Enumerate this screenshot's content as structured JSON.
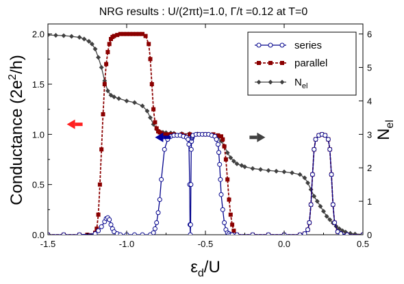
{
  "chart_data": {
    "type": "line",
    "title": "NRG results : U/(2πt)=1.0, Γ/t =0.12  at T=0",
    "xlabel_main": "ε",
    "xlabel_sub": "d",
    "xlabel_rest": "/U",
    "ylabel_left_main": "Conductance  (2e",
    "ylabel_left_sup": "2",
    "ylabel_left_rest": "/h)",
    "ylabel_right_main": "N",
    "ylabel_right_sub": "el",
    "xlim": [
      -1.5,
      0.5
    ],
    "ylim_left": [
      0,
      2.1
    ],
    "ylim_right": [
      0,
      6.3
    ],
    "xticks": [
      -1.5,
      -1.0,
      -0.5,
      0.0,
      0.5
    ],
    "xtick_labels": [
      "-1.5",
      "-1.0",
      "-0.5",
      "0.0",
      "0.5"
    ],
    "yticks_left": [
      0,
      0.5,
      1.0,
      1.5,
      2.0
    ],
    "ytick_labels_left": [
      "0.0",
      "0.5",
      "1.0",
      "1.5",
      "2.0"
    ],
    "yticks_right": [
      0,
      1,
      2,
      3,
      4,
      5,
      6
    ],
    "ytick_labels_right": [
      "0",
      "1",
      "2",
      "3",
      "4",
      "5",
      "6"
    ],
    "legend_position": "top-right",
    "series": [
      {
        "name": "series",
        "color": "#00008b",
        "marker": "open-circle",
        "axis": "left",
        "x": [
          -1.5,
          -1.4,
          -1.3,
          -1.2,
          -1.18,
          -1.16,
          -1.14,
          -1.13,
          -1.12,
          -1.11,
          -1.1,
          -1.09,
          -1.08,
          -1.06,
          -1.04,
          -1.0,
          -0.95,
          -0.9,
          -0.85,
          -0.83,
          -0.82,
          -0.81,
          -0.8,
          -0.79,
          -0.78,
          -0.76,
          -0.74,
          -0.72,
          -0.7,
          -0.68,
          -0.66,
          -0.64,
          -0.62,
          -0.61,
          -0.605,
          -0.6,
          -0.598,
          -0.596,
          -0.594,
          -0.592,
          -0.59,
          -0.588,
          -0.586,
          -0.584,
          -0.582,
          -0.58,
          -0.56,
          -0.54,
          -0.52,
          -0.5,
          -0.48,
          -0.46,
          -0.44,
          -0.43,
          -0.42,
          -0.415,
          -0.41,
          -0.405,
          -0.4,
          -0.39,
          -0.38,
          -0.37,
          -0.36,
          -0.35,
          -0.34,
          -0.33,
          -0.3,
          -0.2,
          -0.1,
          0.0,
          0.1,
          0.13,
          0.15,
          0.16,
          0.17,
          0.18,
          0.19,
          0.2,
          0.22,
          0.24,
          0.26,
          0.28,
          0.29,
          0.3,
          0.31,
          0.32,
          0.34,
          0.36,
          0.4,
          0.5
        ],
        "y": [
          0,
          0,
          0,
          0.01,
          0.04,
          0.08,
          0.13,
          0.16,
          0.17,
          0.15,
          0.1,
          0.06,
          0.03,
          0.01,
          0,
          0,
          0,
          0,
          0,
          0.02,
          0.06,
          0.12,
          0.22,
          0.35,
          0.55,
          0.85,
          0.95,
          0.98,
          0.99,
          0.99,
          0.99,
          0.98,
          0.97,
          0.95,
          0.9,
          0.5,
          0.1,
          0,
          0.1,
          0.5,
          0.85,
          0.93,
          0.96,
          0.97,
          0.98,
          0.99,
          1.0,
          1.0,
          1.0,
          1.0,
          1.0,
          0.99,
          0.98,
          0.95,
          0.9,
          0.82,
          0.7,
          0.55,
          0.4,
          0.25,
          0.12,
          0.05,
          0.02,
          0.01,
          0,
          0,
          0,
          0,
          0,
          0,
          0,
          0.01,
          0.05,
          0.12,
          0.3,
          0.6,
          0.85,
          0.95,
          0.99,
          1.0,
          0.99,
          0.95,
          0.85,
          0.6,
          0.3,
          0.12,
          0.03,
          0.01,
          0,
          0
        ]
      },
      {
        "name": "parallel",
        "color": "#8b0000",
        "marker": "square",
        "axis": "left",
        "x": [
          -1.5,
          -1.4,
          -1.3,
          -1.25,
          -1.2,
          -1.19,
          -1.18,
          -1.17,
          -1.16,
          -1.15,
          -1.14,
          -1.13,
          -1.12,
          -1.11,
          -1.1,
          -1.09,
          -1.08,
          -1.06,
          -1.04,
          -1.02,
          -1.0,
          -0.98,
          -0.96,
          -0.94,
          -0.92,
          -0.9,
          -0.88,
          -0.86,
          -0.85,
          -0.84,
          -0.83,
          -0.82,
          -0.81,
          -0.8,
          -0.79,
          -0.78,
          -0.76,
          -0.74,
          -0.72,
          -0.7,
          -0.65,
          -0.6,
          -0.55,
          -0.5,
          -0.45,
          -0.42,
          -0.4,
          -0.39,
          -0.38,
          -0.37,
          -0.36,
          -0.35,
          -0.34,
          -0.33,
          -0.32,
          -0.3,
          -0.2,
          -0.1,
          0.0,
          0.1,
          0.13,
          0.15,
          0.16,
          0.17,
          0.18,
          0.19,
          0.2,
          0.22,
          0.24,
          0.26,
          0.28,
          0.29,
          0.3,
          0.31,
          0.32,
          0.34,
          0.36,
          0.4,
          0.5
        ],
        "y": [
          0,
          0,
          0,
          0,
          0.02,
          0.06,
          0.2,
          0.5,
          0.85,
          1.2,
          1.5,
          1.7,
          1.82,
          1.9,
          1.95,
          1.97,
          1.98,
          1.99,
          2.0,
          2.0,
          2.0,
          2.0,
          2.0,
          2.0,
          2.0,
          2.0,
          1.98,
          1.9,
          1.75,
          1.5,
          1.25,
          1.12,
          1.06,
          1.03,
          1.02,
          1.01,
          1.0,
          1.0,
          1.0,
          1.0,
          1.0,
          1.0,
          1.0,
          1.0,
          1.0,
          0.99,
          0.98,
          0.95,
          0.88,
          0.75,
          0.55,
          0.35,
          0.2,
          0.1,
          0.04,
          0,
          0,
          0,
          0,
          0,
          0.01,
          0.05,
          0.12,
          0.3,
          0.6,
          0.85,
          0.95,
          0.99,
          1.0,
          0.99,
          0.95,
          0.85,
          0.6,
          0.3,
          0.12,
          0.03,
          0.01,
          0,
          0
        ]
      },
      {
        "name": "N",
        "name_sub": "el",
        "color": "#404040",
        "marker": "diamond",
        "axis": "right",
        "x": [
          -1.5,
          -1.45,
          -1.4,
          -1.35,
          -1.3,
          -1.27,
          -1.24,
          -1.22,
          -1.2,
          -1.18,
          -1.16,
          -1.14,
          -1.12,
          -1.1,
          -1.08,
          -1.05,
          -1.0,
          -0.95,
          -0.9,
          -0.87,
          -0.85,
          -0.83,
          -0.81,
          -0.79,
          -0.77,
          -0.75,
          -0.72,
          -0.7,
          -0.65,
          -0.6,
          -0.55,
          -0.5,
          -0.45,
          -0.42,
          -0.4,
          -0.38,
          -0.36,
          -0.34,
          -0.32,
          -0.3,
          -0.27,
          -0.25,
          -0.2,
          -0.15,
          -0.1,
          -0.05,
          0.0,
          0.05,
          0.1,
          0.13,
          0.15,
          0.17,
          0.19,
          0.21,
          0.23,
          0.25,
          0.27,
          0.29,
          0.31,
          0.33,
          0.35,
          0.37,
          0.39,
          0.42,
          0.45,
          0.5
        ],
        "y": [
          5.97,
          5.96,
          5.95,
          5.93,
          5.9,
          5.85,
          5.78,
          5.7,
          5.55,
          5.3,
          5.0,
          4.6,
          4.3,
          4.17,
          4.12,
          4.07,
          4.0,
          3.95,
          3.85,
          3.7,
          3.5,
          3.3,
          3.15,
          3.08,
          3.06,
          3.05,
          3.04,
          3.03,
          3.02,
          3.02,
          3.01,
          3.0,
          2.97,
          2.9,
          2.8,
          2.65,
          2.45,
          2.3,
          2.2,
          2.12,
          2.07,
          2.03,
          1.98,
          1.95,
          1.92,
          1.9,
          1.88,
          1.85,
          1.8,
          1.7,
          1.55,
          1.35,
          1.15,
          1.0,
          0.85,
          0.7,
          0.55,
          0.45,
          0.35,
          0.25,
          0.18,
          0.12,
          0.08,
          0.04,
          0.02,
          0.01
        ]
      }
    ],
    "arrows": [
      {
        "color": "#ff2020",
        "direction": "left",
        "x_from": -1.28,
        "x_to": -1.38,
        "y": 1.1,
        "axis": "left"
      },
      {
        "color": "#0000a0",
        "direction": "left",
        "x_from": -0.72,
        "x_to": -0.82,
        "y": 0.97,
        "axis": "left"
      },
      {
        "color": "#404040",
        "direction": "right",
        "x_from": -0.22,
        "x_to": -0.12,
        "y": 0.97,
        "axis": "left"
      }
    ]
  }
}
